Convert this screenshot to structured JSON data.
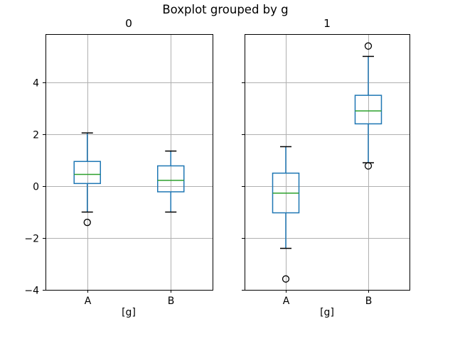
{
  "figure": {
    "suptitle": "Boxplot grouped by g",
    "background": "#ffffff"
  },
  "colors": {
    "box": "#1f77b4",
    "whisker": "#1f77b4",
    "median": "#2ca02c",
    "cap": "#000000",
    "outlier": "#000000",
    "grid": "#b0b0b0",
    "spine": "#000000",
    "text": "#000000"
  },
  "chart_data": [
    {
      "type": "boxplot",
      "title": "0",
      "xlabel": "[g]",
      "categories": [
        "A",
        "B"
      ],
      "ylim": [
        -4.0,
        5.86
      ],
      "yticks": [
        -4,
        -2,
        0,
        2,
        4
      ],
      "ytick_labels": [
        "−4",
        "−2",
        "0",
        "2",
        "4"
      ],
      "show_ytick_labels": true,
      "grid": true,
      "legend": "none",
      "boxes": [
        {
          "category": "A",
          "whisker_low": -1.0,
          "q1": 0.1,
          "median": 0.45,
          "q3": 0.95,
          "whisker_high": 2.05,
          "outliers": [
            -1.4
          ]
        },
        {
          "category": "B",
          "whisker_low": -1.0,
          "q1": -0.22,
          "median": 0.22,
          "q3": 0.78,
          "whisker_high": 1.35,
          "outliers": []
        }
      ]
    },
    {
      "type": "boxplot",
      "title": "1",
      "xlabel": "[g]",
      "categories": [
        "A",
        "B"
      ],
      "ylim": [
        -4.0,
        5.86
      ],
      "yticks": [
        -4,
        -2,
        0,
        2,
        4
      ],
      "ytick_labels": [
        "−4",
        "−2",
        "0",
        "2",
        "4"
      ],
      "show_ytick_labels": false,
      "grid": true,
      "legend": "none",
      "boxes": [
        {
          "category": "A",
          "whisker_low": -2.4,
          "q1": -1.03,
          "median": -0.27,
          "q3": 0.5,
          "whisker_high": 1.52,
          "outliers": [
            -3.58
          ]
        },
        {
          "category": "B",
          "whisker_low": 0.9,
          "q1": 2.4,
          "median": 2.9,
          "q3": 3.5,
          "whisker_high": 5.0,
          "outliers": [
            5.4,
            0.78
          ]
        }
      ]
    }
  ]
}
